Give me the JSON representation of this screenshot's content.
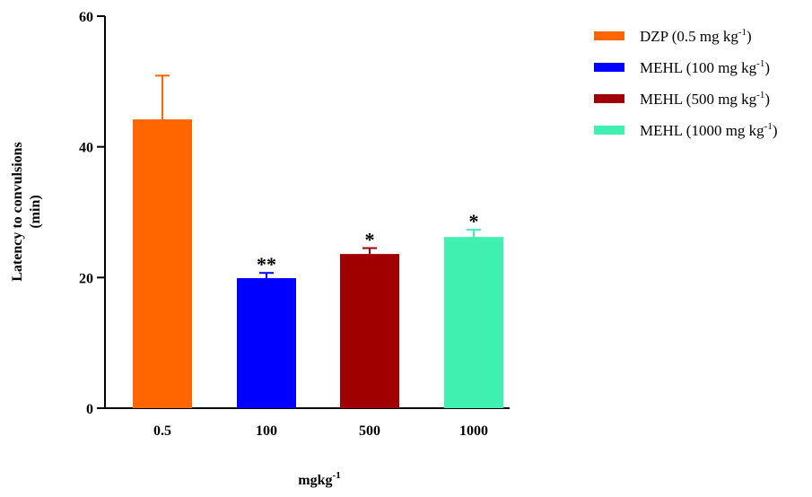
{
  "chart_data": {
    "type": "bar",
    "categories": [
      "0.5",
      "100",
      "500",
      "1000"
    ],
    "values": [
      44.2,
      19.9,
      23.6,
      26.2
    ],
    "errors": [
      6.7,
      0.8,
      0.9,
      1.1
    ],
    "significance": [
      "",
      "**",
      "*",
      "*"
    ],
    "colors": [
      "#ff6600",
      "#0000ff",
      "#a10000",
      "#40f0b0"
    ],
    "legend": [
      {
        "label": "DZP (0.5 mg kg",
        "sup": "-1",
        "suffix": ")"
      },
      {
        "label": "MEHL (100 mg kg",
        "sup": "-1",
        "suffix": ")"
      },
      {
        "label": "MEHL (500 mg kg",
        "sup": "-1",
        "suffix": ")"
      },
      {
        "label": "MEHL (1000 mg kg",
        "sup": "-1",
        "suffix": ")"
      }
    ],
    "legend_position": "top-right",
    "xlabel": "mgkg",
    "xlabel_sup": "-1",
    "ylabel_line1": "Latency to convulsions",
    "ylabel_line2": "(min)",
    "ylim": [
      0,
      60
    ],
    "yticks": [
      0,
      20,
      40,
      60
    ],
    "grid": false
  }
}
